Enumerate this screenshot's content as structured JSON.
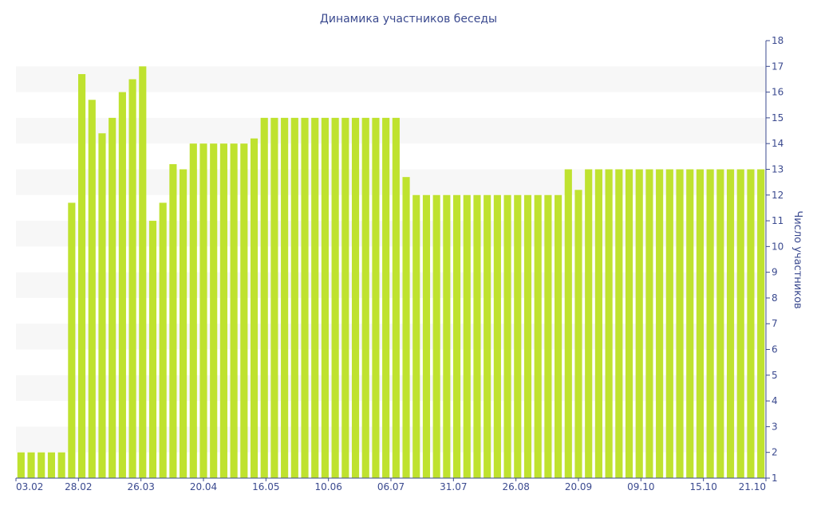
{
  "chart_data": {
    "type": "bar",
    "title": "Динамика участников беседы",
    "xlabel": "",
    "ylabel": "Число участников",
    "ylim": [
      1,
      18
    ],
    "yticks": [
      1,
      2,
      3,
      4,
      5,
      6,
      7,
      8,
      9,
      10,
      11,
      12,
      13,
      14,
      15,
      16,
      17,
      18
    ],
    "xtick_labels": [
      "03.02",
      "28.02",
      "26.03",
      "20.04",
      "16.05",
      "10.06",
      "06.07",
      "31.07",
      "26.08",
      "20.09",
      "09.10",
      "15.10",
      "21.10"
    ],
    "grid": "alternating horizontal bands",
    "y_axis_position": "right",
    "colors": {
      "bar": "#bfe22f",
      "band": "#f7f7f7",
      "axis": "#3b4a8f",
      "text": "#3b4a8f"
    },
    "values": [
      2,
      2,
      2,
      2,
      2,
      11.7,
      16.7,
      15.7,
      14.4,
      15,
      16,
      16.5,
      17,
      11,
      11.7,
      13.2,
      13,
      14,
      14,
      14,
      14,
      14,
      14,
      14.2,
      15,
      15,
      15,
      15,
      15,
      15,
      15,
      15,
      15,
      15,
      15,
      15,
      15,
      15,
      12.7,
      12,
      12,
      12,
      12,
      12,
      12,
      12,
      12,
      12,
      12,
      12,
      12,
      12,
      12,
      12,
      13,
      12.2,
      13,
      13,
      13,
      13,
      13,
      13,
      13,
      13,
      13,
      13,
      13,
      13,
      13,
      13,
      13,
      13,
      13,
      13
    ]
  }
}
